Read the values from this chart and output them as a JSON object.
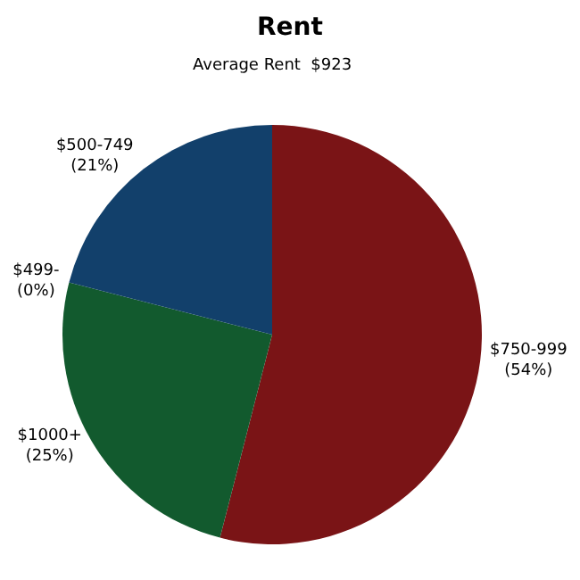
{
  "chart_data": {
    "type": "pie",
    "title": "Rent",
    "subtitle": "Average Rent  $923",
    "categories": [
      "$750-999",
      "$1000+",
      "$499-",
      "$500-749"
    ],
    "values": [
      54,
      25,
      0,
      21
    ],
    "value_labels": [
      "(54%)",
      "(25%)",
      "(0%)",
      "(21%)"
    ],
    "colors": [
      "#7a1416",
      "#125a2e",
      "#125a2e",
      "#12406b"
    ],
    "legend": false
  }
}
